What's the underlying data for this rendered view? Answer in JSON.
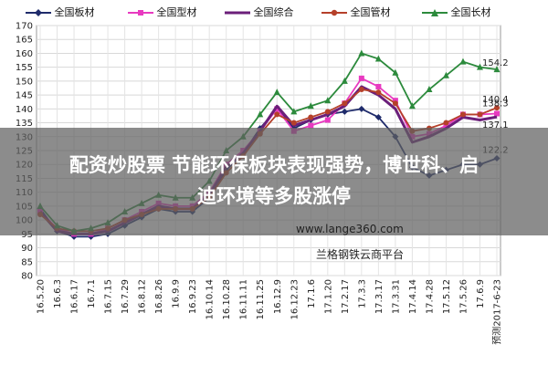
{
  "legend": [
    {
      "name": "全国板材",
      "color": "#1f2b6b",
      "marker": "diamond"
    },
    {
      "name": "全国型材",
      "color": "#e83ac0",
      "marker": "square"
    },
    {
      "name": "全国综合",
      "color": "#6b1f7a",
      "marker": "none"
    },
    {
      "name": "全国管材",
      "color": "#b5402a",
      "marker": "circle"
    },
    {
      "name": "全国长材",
      "color": "#2c8a3c",
      "marker": "triangle"
    }
  ],
  "banner": {
    "line1": "配资炒股票 节能环保板块表现强势，博世科、启",
    "line2": "迪环境等多股涨停"
  },
  "watermark": "www.lange360.com",
  "platform": "兰格钢铁云商平台",
  "chart_data": {
    "type": "line",
    "xlabel": "",
    "ylabel": "",
    "ylim": [
      80,
      170
    ],
    "yticks": [
      80,
      85,
      90,
      95,
      100,
      105,
      110,
      115,
      120,
      125,
      130,
      135,
      140,
      145,
      150,
      155,
      160,
      165,
      170
    ],
    "grid": true,
    "legend_position": "top",
    "tick_labels": [
      "16.5.20",
      "16.6.3",
      "16.6.17",
      "16.7.1",
      "16.7.15",
      "16.7.29",
      "16.8.12",
      "16.8.26",
      "16.9.9",
      "16.9.23",
      "16.10.14",
      "16.10.28",
      "16.11.11",
      "16.11.25",
      "16.12.9",
      "16.12.23",
      "17.1.6",
      "17.1.20",
      "17.2.17",
      "17.3.3",
      "17.3.17",
      "17.3.31",
      "17.4.14",
      "17.4.28",
      "17.5.12",
      "17.5.26",
      "17.6.9",
      "预测2017-6-23"
    ],
    "series": [
      {
        "name": "全国板材",
        "values": [
          104,
          96,
          94,
          94,
          95,
          98,
          101,
          104,
          103,
          103,
          108,
          118,
          124,
          133,
          140,
          133,
          136,
          138,
          139,
          140,
          137,
          130,
          119,
          116,
          118,
          120,
          120,
          122.2
        ]
      },
      {
        "name": "全国型材",
        "values": [
          103,
          97,
          95,
          95,
          97,
          100,
          103,
          106,
          105,
          105,
          110,
          120,
          125,
          132,
          140,
          132,
          134,
          136,
          142,
          151,
          148,
          143,
          130,
          131,
          134,
          138,
          138,
          138.3
        ]
      },
      {
        "name": "全国综合",
        "values": [
          103,
          96,
          95,
          95,
          96,
          99,
          102,
          105,
          104,
          104,
          109,
          119,
          124,
          132,
          141,
          134,
          136,
          138,
          141,
          148,
          145,
          140,
          128,
          130,
          133,
          137,
          136,
          137.1
        ]
      },
      {
        "name": "全国管材",
        "values": [
          102,
          97,
          96,
          96,
          97,
          100,
          102,
          104,
          104,
          104,
          108,
          117,
          123,
          131,
          138,
          135,
          137,
          139,
          142,
          147,
          146,
          142,
          132,
          133,
          135,
          138,
          138,
          140.4
        ]
      },
      {
        "name": "全国长材",
        "values": [
          105,
          98,
          96,
          97,
          99,
          103,
          106,
          109,
          108,
          108,
          114,
          125,
          130,
          138,
          146,
          139,
          141,
          143,
          150,
          160,
          158,
          153,
          141,
          147,
          152,
          157,
          155,
          154.2
        ]
      }
    ],
    "end_labels": [
      "154.2",
      "140.4",
      "138.3",
      "137.1",
      "122.2"
    ]
  }
}
